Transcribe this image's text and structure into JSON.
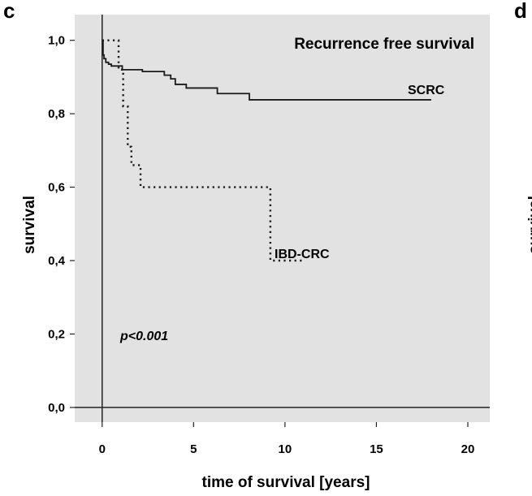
{
  "panel_labels": {
    "left": "c",
    "right": "d"
  },
  "clipped_neighbor_ylabel": "survival",
  "colors": {
    "plot_bg": "#e2e2e2",
    "line": "#1a1a1a",
    "axis": "#222222"
  },
  "chart_data": {
    "type": "line",
    "title": "Recurrence free survival",
    "xlabel": "time of survival [years]",
    "ylabel": "survival",
    "xlim": [
      -1.5,
      21.2
    ],
    "ylim": [
      -0.04,
      1.07
    ],
    "x_ticks": [
      0,
      5,
      10,
      15,
      20
    ],
    "x_tick_labels": [
      "0",
      "5",
      "10",
      "15",
      "20"
    ],
    "y_ticks": [
      0.0,
      0.2,
      0.4,
      0.6,
      0.8,
      1.0
    ],
    "y_tick_labels": [
      "0,0",
      "0,2",
      "0,4",
      "0,6",
      "0,8",
      "1,0"
    ],
    "grid": false,
    "annotation": "p<0.001",
    "series": [
      {
        "name": "SCRC",
        "style": "solid",
        "step": true,
        "x": [
          0,
          0.05,
          0.1,
          0.2,
          0.35,
          0.5,
          0.75,
          1.1,
          1.7,
          2.2,
          3.4,
          3.75,
          4.0,
          4.6,
          6.3,
          8.05,
          18.0
        ],
        "y": [
          1.0,
          0.96,
          0.95,
          0.94,
          0.935,
          0.93,
          0.93,
          0.92,
          0.92,
          0.915,
          0.905,
          0.895,
          0.88,
          0.87,
          0.855,
          0.838,
          0.838
        ]
      },
      {
        "name": "IBD-CRC",
        "style": "dotted",
        "step": true,
        "x": [
          0,
          0.6,
          0.9,
          1.15,
          1.4,
          1.6,
          2.1,
          9.2,
          11.0
        ],
        "y": [
          1.0,
          1.0,
          0.92,
          0.82,
          0.71,
          0.66,
          0.6,
          0.4,
          0.4
        ]
      }
    ]
  }
}
